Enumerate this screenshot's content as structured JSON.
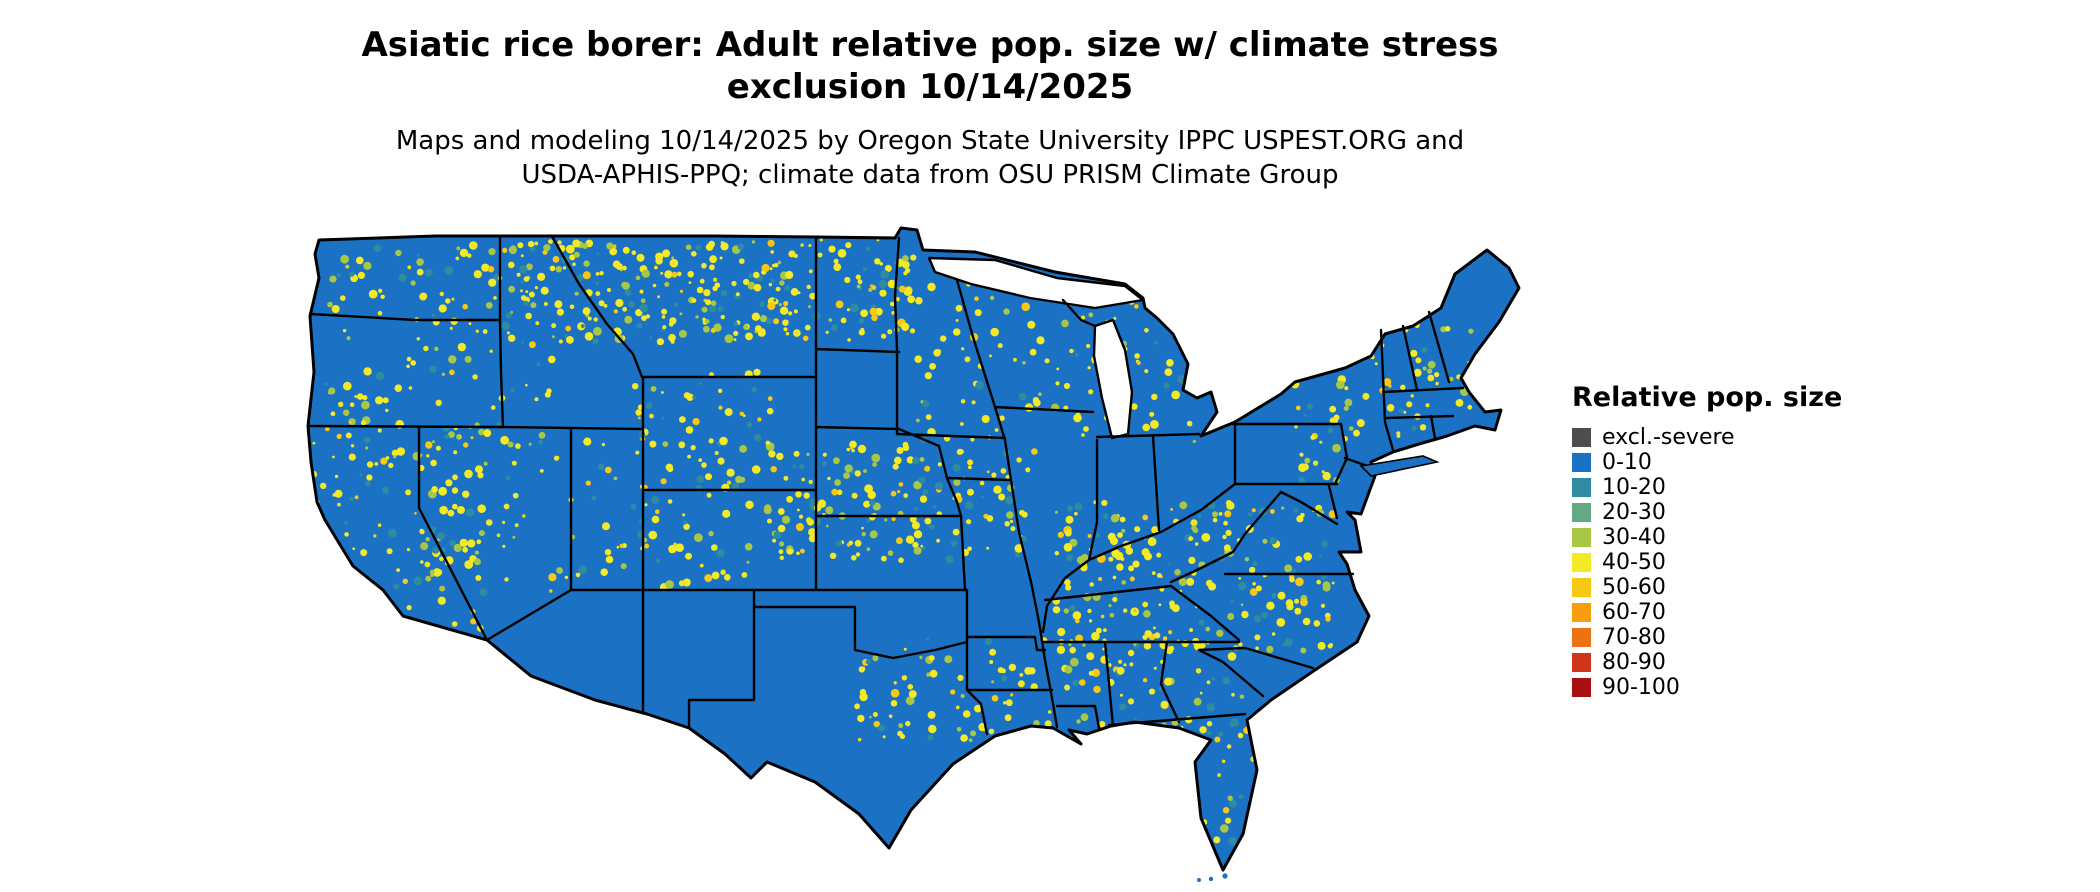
{
  "header": {
    "title_line1": "Asiatic rice borer: Adult relative pop. size w/ climate stress",
    "title_line2": "exclusion 10/14/2025",
    "subtitle_line1": "Maps and modeling 10/14/2025 by Oregon State University IPPC USPEST.ORG and",
    "subtitle_line2": "USDA-APHIS-PPQ; climate data from OSU PRISM Climate Group"
  },
  "legend": {
    "title": "Relative pop. size",
    "items": [
      {
        "label": "excl.-severe",
        "color": "#4d4d4d"
      },
      {
        "label": "0-10",
        "color": "#1b72c4"
      },
      {
        "label": "10-20",
        "color": "#2f8ba0"
      },
      {
        "label": "20-30",
        "color": "#64a985"
      },
      {
        "label": "30-40",
        "color": "#a8c747"
      },
      {
        "label": "40-50",
        "color": "#f3ea25"
      },
      {
        "label": "50-60",
        "color": "#f8c913"
      },
      {
        "label": "60-70",
        "color": "#f79d0e"
      },
      {
        "label": "70-80",
        "color": "#ed7115"
      },
      {
        "label": "80-90",
        "color": "#d0351c"
      },
      {
        "label": "90-100",
        "color": "#a90e13"
      }
    ]
  },
  "map": {
    "description": "Continental United States raster map of relative population size",
    "land_color": "#1b72c4",
    "water_color": "#ffffff",
    "border_color": "#000000"
  }
}
